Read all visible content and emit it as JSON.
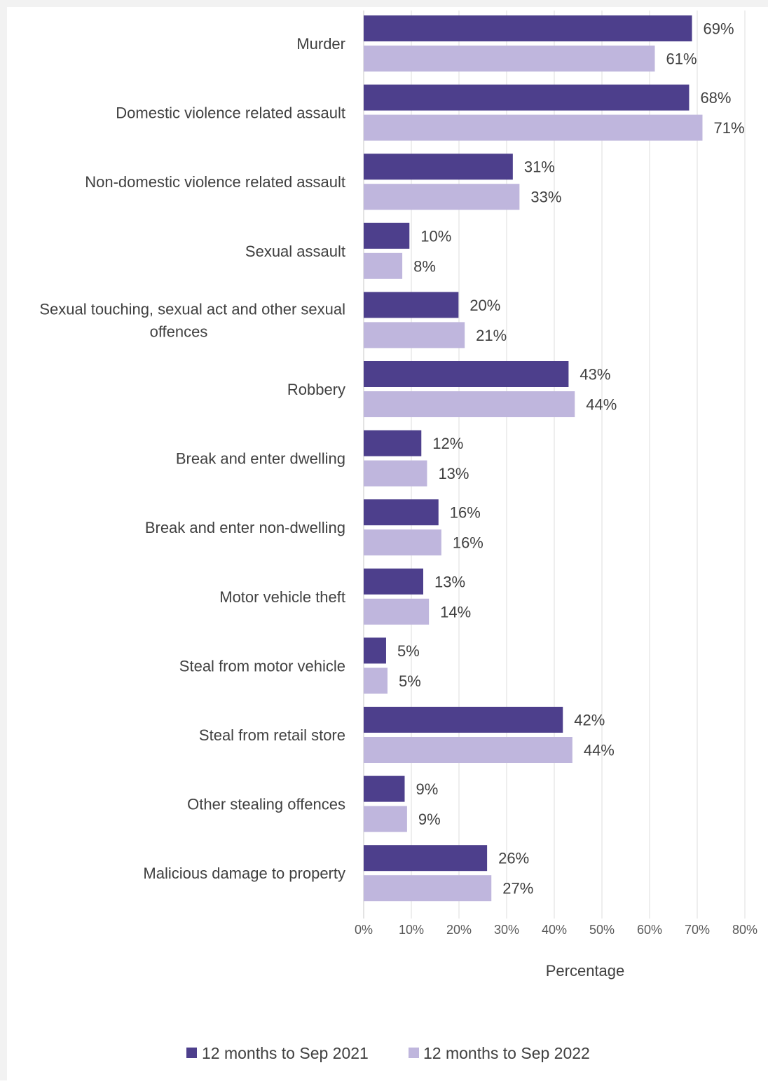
{
  "chart_data": {
    "type": "bar",
    "orientation": "horizontal",
    "categories": [
      "Murder",
      "Domestic violence related assault",
      "Non-domestic violence related assault",
      "Sexual assault",
      "Sexual touching, sexual act and other sexual offences",
      "Robbery",
      "Break and enter dwelling",
      "Break and enter non-dwelling",
      "Motor vehicle theft",
      "Steal from motor vehicle",
      "Steal from retail store",
      "Other stealing offences",
      "Malicious damage to property"
    ],
    "category_lines": [
      [
        "Murder"
      ],
      [
        "Domestic violence related assault"
      ],
      [
        "Non-domestic violence related assault"
      ],
      [
        "Sexual assault"
      ],
      [
        "Sexual touching, sexual act and other sexual",
        "offences"
      ],
      [
        "Robbery"
      ],
      [
        "Break and enter dwelling"
      ],
      [
        "Break and enter non-dwelling"
      ],
      [
        "Motor vehicle theft"
      ],
      [
        "Steal from motor vehicle"
      ],
      [
        "Steal from retail store"
      ],
      [
        "Other stealing offences"
      ],
      [
        "Malicious damage to property"
      ]
    ],
    "series": [
      {
        "name": "12 months to Sep 2021",
        "color": "#4d3f8c",
        "values": [
          69,
          68,
          31,
          10,
          20,
          43,
          12,
          16,
          13,
          5,
          42,
          9,
          26
        ],
        "precise": [
          68.9,
          68.3,
          31.3,
          9.6,
          19.9,
          43.0,
          12.1,
          15.7,
          12.5,
          4.7,
          41.8,
          8.6,
          25.9
        ],
        "labels": [
          "69%",
          "68%",
          "31%",
          "10%",
          "20%",
          "43%",
          "12%",
          "16%",
          "13%",
          "5%",
          "42%",
          "9%",
          "26%"
        ]
      },
      {
        "name": "12 months to Sep 2022",
        "color": "#bfb6dd",
        "values": [
          61,
          71,
          33,
          8,
          21,
          44,
          13,
          16,
          14,
          5,
          44,
          9,
          27
        ],
        "precise": [
          61.1,
          71.1,
          32.7,
          8.1,
          21.2,
          44.3,
          13.3,
          16.3,
          13.7,
          5.0,
          43.8,
          9.1,
          26.8
        ],
        "labels": [
          "61%",
          "71%",
          "33%",
          "8%",
          "21%",
          "44%",
          "13%",
          "16%",
          "14%",
          "5%",
          "44%",
          "9%",
          "27%"
        ]
      }
    ],
    "x_ticks": [
      "0%",
      "10%",
      "20%",
      "30%",
      "40%",
      "50%",
      "60%",
      "70%",
      "80%"
    ],
    "xlim": [
      0,
      80
    ],
    "xlabel": "Percentage",
    "ylabel": "",
    "grid": true,
    "legend_position": "bottom"
  }
}
